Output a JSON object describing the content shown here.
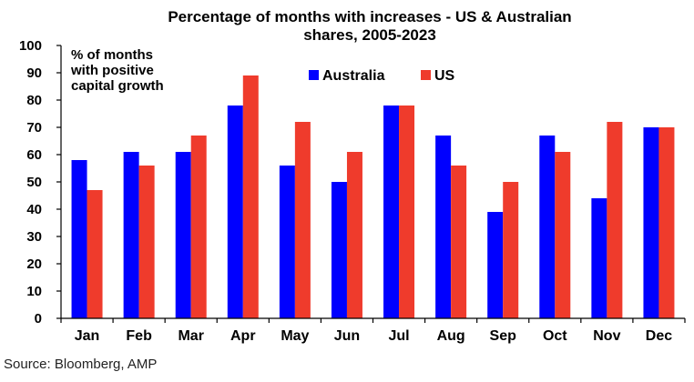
{
  "chart_data": {
    "type": "bar",
    "title_lines": [
      "Percentage of months with increases - US & Australian",
      "shares, 2005-2023"
    ],
    "annotation_lines": [
      "% of months",
      "with positive",
      "capital growth"
    ],
    "categories": [
      "Jan",
      "Feb",
      "Mar",
      "Apr",
      "May",
      "Jun",
      "Jul",
      "Aug",
      "Sep",
      "Oct",
      "Nov",
      "Dec"
    ],
    "series": [
      {
        "name": "Australia",
        "color": "#0000ff",
        "values": [
          58,
          61,
          61,
          78,
          56,
          50,
          78,
          67,
          39,
          67,
          44,
          70
        ]
      },
      {
        "name": "US",
        "color": "#ef3b2c",
        "values": [
          47,
          56,
          67,
          89,
          72,
          61,
          78,
          56,
          50,
          61,
          72,
          70
        ]
      }
    ],
    "ylim": [
      0,
      100
    ],
    "yticks": [
      0,
      10,
      20,
      30,
      40,
      50,
      60,
      70,
      80,
      90,
      100
    ],
    "grid": false,
    "legend_position": "top-center"
  },
  "source": "Source: Bloomberg, AMP"
}
